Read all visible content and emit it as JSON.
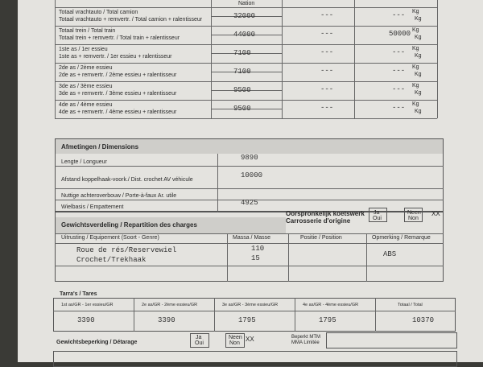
{
  "top_table": {
    "header": "Nation",
    "rows": [
      {
        "label1": "Totaal vrachtauto / Total camion",
        "label2": "Totaal vrachtauto + remvertr. / Total camion + ralentisseur",
        "value": 32000,
        "col2": "---",
        "col3": "---",
        "unit1": "Kg",
        "unit2": "Kg"
      },
      {
        "label1": "Totaal trein / Total train",
        "label2": "Totaal trein + remvertr. / Total train + ralentisseur",
        "value": 44000,
        "col2": "---",
        "col3": 50000,
        "unit1": "Kg",
        "unit2": "Kg"
      },
      {
        "label1": "1ste as / 1er essieu",
        "label2": "1ste as + remvertr. / 1er essieu + ralentisseur",
        "value": 7100,
        "col2": "---",
        "col3": "---",
        "unit1": "Kg",
        "unit2": "Kg"
      },
      {
        "label1": "2de as / 2ème essieu",
        "label2": "2de as + remvertr. / 2ème essieu + ralentisseur",
        "value": 7100,
        "col2": "---",
        "col3": "---",
        "unit1": "Kg",
        "unit2": "Kg"
      },
      {
        "label1": "3de as / 3ème essieu",
        "label2": "3de as + remvertr. / 3ème essieu + ralentisseur",
        "value": 9500,
        "col2": "---",
        "col3": "---",
        "unit1": "Kg",
        "unit2": "Kg"
      },
      {
        "label1": "4de as / 4ème essieu",
        "label2": "4de as + remvertr. / 4ème essieu + ralentisseur",
        "value": 9500,
        "col2": "---",
        "col3": "---",
        "unit1": "Kg",
        "unit2": "Kg"
      }
    ]
  },
  "dimensions": {
    "title": "Afmetingen / Dimensions",
    "rows": [
      {
        "label": "Lengte / Longueur",
        "value": 9890
      },
      {
        "label": "Afstand koppelhaak-voork./ Dist. crochet AV véhicule",
        "value": 10000
      },
      {
        "label": "Nuttige achteroverbouw / Porte-à-faux Ar. utile"
      },
      {
        "label": "Wielbasis / Empattement",
        "value": 4925
      }
    ]
  },
  "weights": {
    "title": "Gewichtsverdeling / Repartition des charges",
    "bodywork1": "Oorspronkelijk koetswerk",
    "bodywork2": "Carrosserie d'origine",
    "yes1": "Ja",
    "yes2": "Oui",
    "no1": "Neen",
    "no2": "Non",
    "mark": "XX",
    "columns": [
      "Uitrusting / Equipement (Soort - Genre)",
      "Massa / Masse",
      "Positie / Position",
      "Opmerking / Remarque"
    ],
    "rows": [
      {
        "equipment": "Roue de rés/Reservewiel",
        "mass": 110
      },
      {
        "equipment": "Crochet/Trekhaak",
        "mass": 15
      }
    ],
    "remark": "ABS"
  },
  "tares": {
    "title": "Tarra's / Tares",
    "columns": [
      "1st as/GR - 1er essieu/GR",
      "2e as/GR - 2ème essieu/GR",
      "3e as/GR - 3ème essieu/GR",
      "4e as/GR - 4ème essieu/GR",
      "Totaal / Total"
    ],
    "values": [
      3390,
      3390,
      1795,
      1795,
      10370
    ]
  },
  "derating": {
    "title": "Gewichtsbeperking / Détarage",
    "yes1": "Ja",
    "yes2": "Oui",
    "no1": "Neen",
    "no2": "Non",
    "mark": "XX",
    "limit1": "Beperkt MTM",
    "limit2": "MMA Limitée"
  }
}
